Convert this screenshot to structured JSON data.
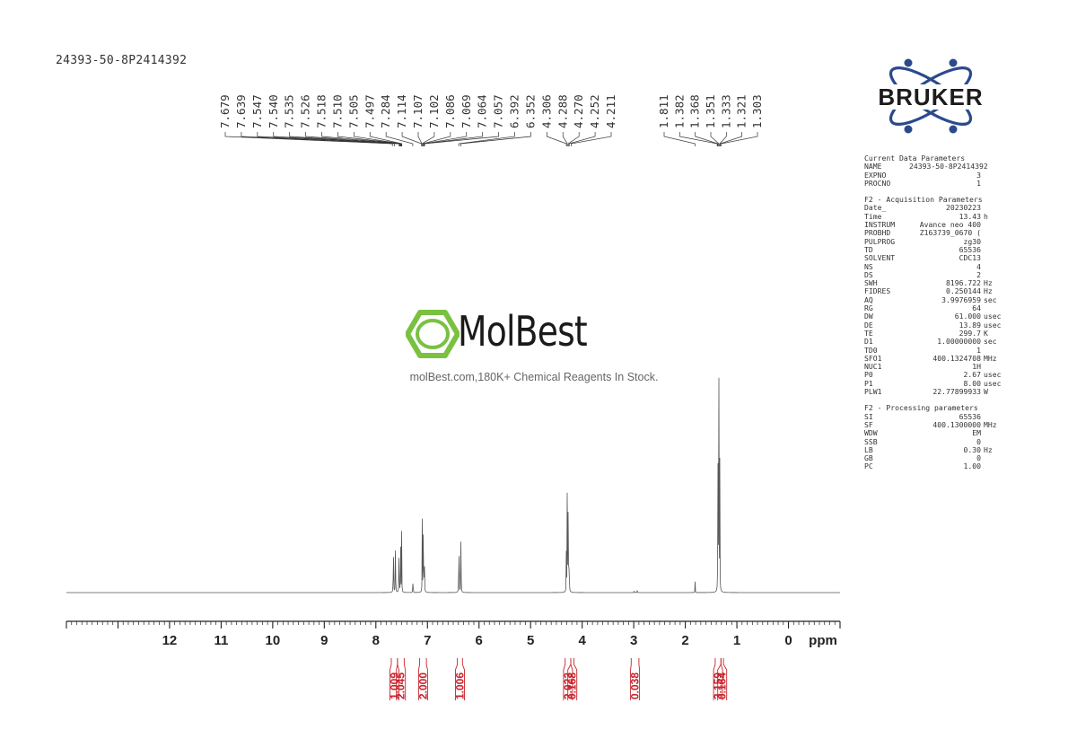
{
  "sample_id": "24393-50-8P2414392",
  "watermark": {
    "brand": "MolBest",
    "tagline": "molBest.com,180K+ Chemical Reagents In Stock."
  },
  "bruker_logo_text": "BRUKER",
  "colors": {
    "spectrum": "#555555",
    "integration": "#c8232c",
    "watermark_green": "#7ac142",
    "bruker_blue": "#2b4a8c"
  },
  "chart_data": {
    "type": "line",
    "xlabel": "ppm",
    "xlim": [
      14.0,
      -1.0
    ],
    "x_axis_reversed": true,
    "x_ticks": [
      "12",
      "11",
      "10",
      "9",
      "8",
      "7",
      "6",
      "5",
      "4",
      "3",
      "2",
      "1",
      "0"
    ],
    "peak_labels": [
      "7.679",
      "7.639",
      "7.547",
      "7.540",
      "7.535",
      "7.526",
      "7.518",
      "7.510",
      "7.505",
      "7.497",
      "7.284",
      "7.114",
      "7.107",
      "7.102",
      "7.086",
      "7.069",
      "7.064",
      "7.057",
      "6.392",
      "6.352",
      "4.306",
      "4.288",
      "4.270",
      "4.252",
      "4.211",
      "1.811",
      "1.382",
      "1.368",
      "1.351",
      "1.333",
      "1.321",
      "1.303"
    ],
    "peaks": [
      {
        "ppm": 7.66,
        "height": 0.25
      },
      {
        "ppm": 7.62,
        "height": 0.25
      },
      {
        "ppm": 7.55,
        "height": 0.24
      },
      {
        "ppm": 7.52,
        "height": 0.23
      },
      {
        "ppm": 7.5,
        "height": 0.2
      },
      {
        "ppm": 7.28,
        "height": 0.07
      },
      {
        "ppm": 7.1,
        "height": 0.23
      },
      {
        "ppm": 7.08,
        "height": 0.42
      },
      {
        "ppm": 7.06,
        "height": 0.2
      },
      {
        "ppm": 6.39,
        "height": 0.29
      },
      {
        "ppm": 6.35,
        "height": 0.27
      },
      {
        "ppm": 4.306,
        "height": 0.16
      },
      {
        "ppm": 4.288,
        "height": 0.5
      },
      {
        "ppm": 4.27,
        "height": 0.5
      },
      {
        "ppm": 4.252,
        "height": 0.16
      },
      {
        "ppm": 2.99,
        "height": 0.012
      },
      {
        "ppm": 2.93,
        "height": 0.012
      },
      {
        "ppm": 1.81,
        "height": 0.035
      },
      {
        "ppm": 1.368,
        "height": 0.5
      },
      {
        "ppm": 1.351,
        "height": 1.0
      },
      {
        "ppm": 1.333,
        "height": 0.5
      }
    ],
    "integrals": [
      {
        "value": "1.009",
        "from": 7.7,
        "to": 7.58
      },
      {
        "value": "2.045",
        "from": 7.58,
        "to": 7.45
      },
      {
        "value": "2.000",
        "from": 7.15,
        "to": 7.02
      },
      {
        "value": "1.006",
        "from": 6.42,
        "to": 6.32
      },
      {
        "value": "2.023",
        "from": 4.33,
        "to": 4.22
      },
      {
        "value": "0.168",
        "from": 4.22,
        "to": 4.16
      },
      {
        "value": "0.038",
        "from": 3.05,
        "to": 2.9
      },
      {
        "value": "3.159",
        "from": 1.42,
        "to": 1.31
      },
      {
        "value": "0.164",
        "from": 1.31,
        "to": 1.26
      }
    ]
  },
  "params": {
    "current": {
      "title": "Current Data Parameters",
      "rows": [
        {
          "k": "NAME",
          "v": "24393-50-8P2414392",
          "u": ""
        },
        {
          "k": "EXPNO",
          "v": "3",
          "u": ""
        },
        {
          "k": "PROCNO",
          "v": "1",
          "u": ""
        }
      ]
    },
    "acquisition": {
      "title": "F2 - Acquisition Parameters",
      "rows": [
        {
          "k": "Date_",
          "v": "20230223",
          "u": ""
        },
        {
          "k": "Time",
          "v": "13.43",
          "u": "h"
        },
        {
          "k": "INSTRUM",
          "v": "Avance neo 400",
          "u": ""
        },
        {
          "k": "PROBHD",
          "v": "Z163739_0670 (",
          "u": ""
        },
        {
          "k": "PULPROG",
          "v": "zg30",
          "u": ""
        },
        {
          "k": "TD",
          "v": "65536",
          "u": ""
        },
        {
          "k": "SOLVENT",
          "v": "CDC13",
          "u": ""
        },
        {
          "k": "NS",
          "v": "4",
          "u": ""
        },
        {
          "k": "DS",
          "v": "2",
          "u": ""
        },
        {
          "k": "SWH",
          "v": "8196.722",
          "u": "Hz"
        },
        {
          "k": "FIDRES",
          "v": "0.250144",
          "u": "Hz"
        },
        {
          "k": "AQ",
          "v": "3.9976959",
          "u": "sec"
        },
        {
          "k": "RG",
          "v": "64",
          "u": ""
        },
        {
          "k": "DW",
          "v": "61.000",
          "u": "usec"
        },
        {
          "k": "DE",
          "v": "13.89",
          "u": "usec"
        },
        {
          "k": "TE",
          "v": "299.7",
          "u": "K"
        },
        {
          "k": "D1",
          "v": "1.00000000",
          "u": "sec"
        },
        {
          "k": "TD0",
          "v": "1",
          "u": ""
        },
        {
          "k": "SFO1",
          "v": "400.1324708",
          "u": "MHz"
        },
        {
          "k": "NUC1",
          "v": "1H",
          "u": ""
        },
        {
          "k": "P0",
          "v": "2.67",
          "u": "usec"
        },
        {
          "k": "P1",
          "v": "8.00",
          "u": "usec"
        },
        {
          "k": "PLW1",
          "v": "22.77899933",
          "u": "W"
        }
      ]
    },
    "processing": {
      "title": "F2 - Processing parameters",
      "rows": [
        {
          "k": "SI",
          "v": "65536",
          "u": ""
        },
        {
          "k": "SF",
          "v": "400.1300000",
          "u": "MHz"
        },
        {
          "k": "WDW",
          "v": "EM",
          "u": ""
        },
        {
          "k": "SSB",
          "v": "0",
          "u": ""
        },
        {
          "k": "LB",
          "v": "0.30",
          "u": "Hz"
        },
        {
          "k": "GB",
          "v": "0",
          "u": ""
        },
        {
          "k": "PC",
          "v": "1.00",
          "u": ""
        }
      ]
    }
  }
}
